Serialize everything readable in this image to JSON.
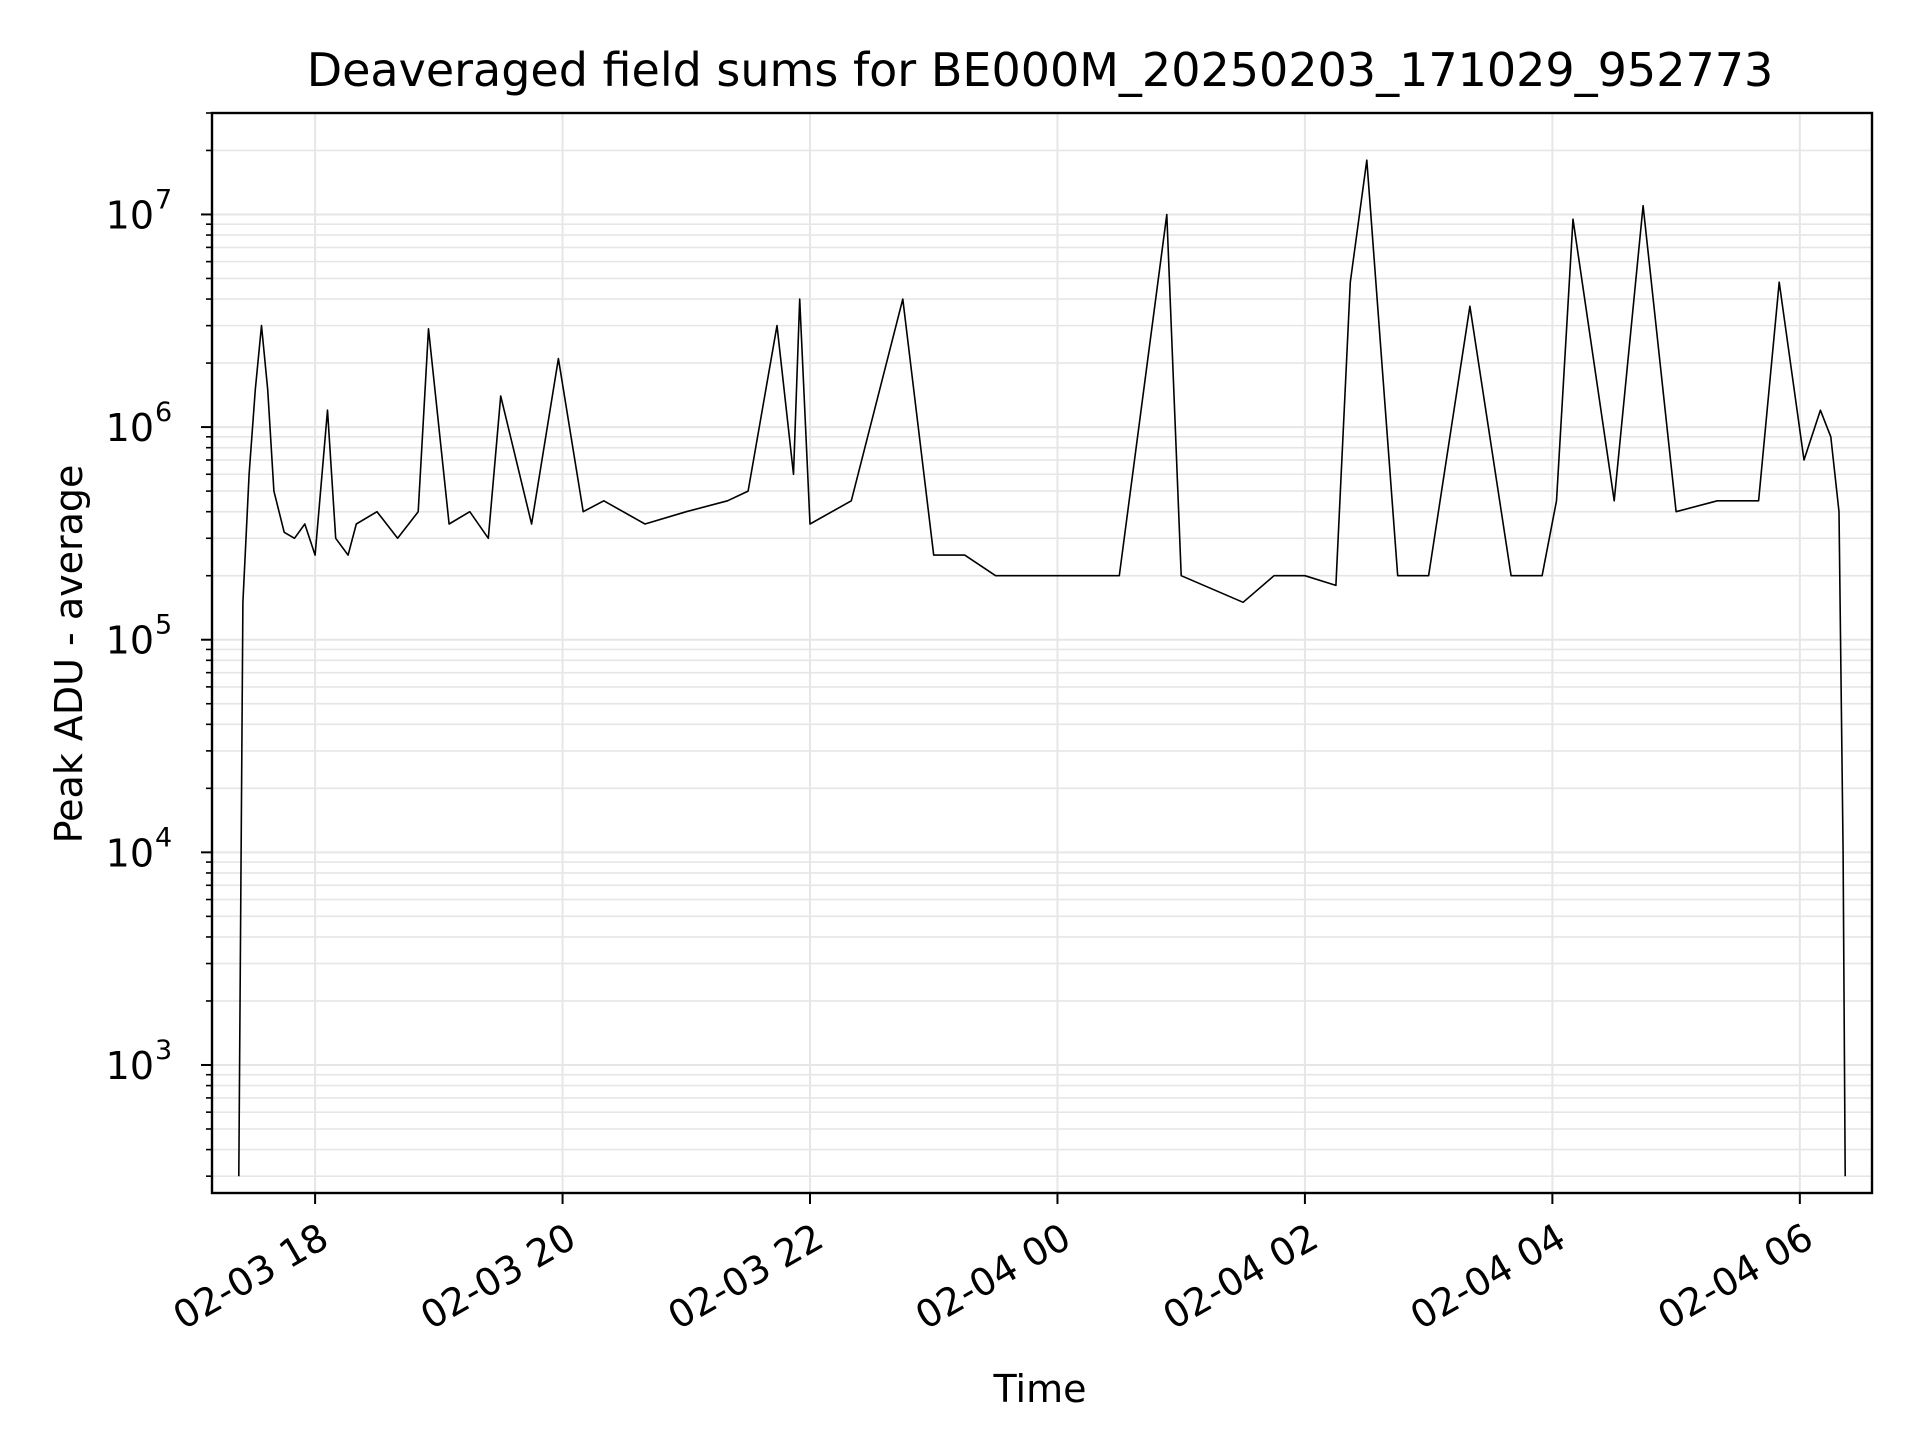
{
  "chart_data": {
    "type": "line",
    "title": "Deaveraged field sums for BE000M_20250203_171029_952773",
    "xlabel": "Time",
    "ylabel": "Peak ADU - average",
    "y_scale": "log",
    "ylim": [
      250,
      30000000
    ],
    "xlim": [
      "2025-02-03 17:10",
      "2025-02-04 06:35"
    ],
    "x_ticks": [
      "2025-02-03 18:00",
      "2025-02-03 20:00",
      "2025-02-03 22:00",
      "2025-02-04 00:00",
      "2025-02-04 02:00",
      "2025-02-04 04:00",
      "2025-02-04 06:00"
    ],
    "x_tick_labels": [
      "02-03 18",
      "02-03 20",
      "02-03 22",
      "02-04 00",
      "02-04 02",
      "02-04 04",
      "02-04 06"
    ],
    "y_tick_base": "10",
    "y_tick_exponents": [
      "3",
      "4",
      "5",
      "6",
      "7"
    ],
    "grid": "major and minor",
    "line_color": "#000000",
    "grid_color": "#e6e6e6",
    "series": [
      {
        "x": [
          "2025-02-03 17:23",
          "2025-02-03 17:25",
          "2025-02-03 17:28",
          "2025-02-03 17:31",
          "2025-02-03 17:34",
          "2025-02-03 17:37",
          "2025-02-03 17:40",
          "2025-02-03 17:45",
          "2025-02-03 17:50",
          "2025-02-03 17:55",
          "2025-02-03 18:00",
          "2025-02-03 18:06",
          "2025-02-03 18:10",
          "2025-02-03 18:16",
          "2025-02-03 18:20",
          "2025-02-03 18:30",
          "2025-02-03 18:40",
          "2025-02-03 18:50",
          "2025-02-03 18:55",
          "2025-02-03 19:05",
          "2025-02-03 19:15",
          "2025-02-03 19:24",
          "2025-02-03 19:30",
          "2025-02-03 19:45",
          "2025-02-03 19:58",
          "2025-02-03 20:10",
          "2025-02-03 20:20",
          "2025-02-03 20:40",
          "2025-02-03 21:00",
          "2025-02-03 21:20",
          "2025-02-03 21:30",
          "2025-02-03 21:44",
          "2025-02-03 21:52",
          "2025-02-03 21:55",
          "2025-02-03 22:00",
          "2025-02-03 22:20",
          "2025-02-03 22:45",
          "2025-02-03 23:00",
          "2025-02-03 23:15",
          "2025-02-03 23:30",
          "2025-02-03 23:45",
          "2025-02-04 00:00",
          "2025-02-04 00:30",
          "2025-02-04 00:53",
          "2025-02-04 01:00",
          "2025-02-04 01:30",
          "2025-02-04 01:45",
          "2025-02-04 02:00",
          "2025-02-04 02:15",
          "2025-02-04 02:22",
          "2025-02-04 02:30",
          "2025-02-04 02:45",
          "2025-02-04 03:00",
          "2025-02-04 03:20",
          "2025-02-04 03:40",
          "2025-02-04 03:55",
          "2025-02-04 04:02",
          "2025-02-04 04:10",
          "2025-02-04 04:30",
          "2025-02-04 04:44",
          "2025-02-04 05:00",
          "2025-02-04 05:20",
          "2025-02-04 05:40",
          "2025-02-04 05:50",
          "2025-02-04 06:02",
          "2025-02-04 06:10",
          "2025-02-04 06:15",
          "2025-02-04 06:19",
          "2025-02-04 06:21",
          "2025-02-04 06:22"
        ],
        "y": [
          300,
          150000,
          600000,
          1500000,
          3000000,
          1500000,
          500000,
          320000,
          300000,
          350000,
          250000,
          1200000,
          300000,
          250000,
          350000,
          400000,
          300000,
          400000,
          2900000,
          350000,
          400000,
          300000,
          1400000,
          350000,
          2100000,
          400000,
          450000,
          350000,
          400000,
          450000,
          500000,
          3000000,
          600000,
          4000000,
          350000,
          450000,
          4000000,
          250000,
          250000,
          200000,
          200000,
          200000,
          200000,
          10000000,
          200000,
          150000,
          200000,
          200000,
          180000,
          4800000,
          18000000,
          200000,
          200000,
          3700000,
          200000,
          200000,
          450000,
          9500000,
          450000,
          11000000,
          400000,
          450000,
          450000,
          4800000,
          700000,
          1200000,
          900000,
          400000,
          10000,
          300
        ]
      }
    ]
  }
}
